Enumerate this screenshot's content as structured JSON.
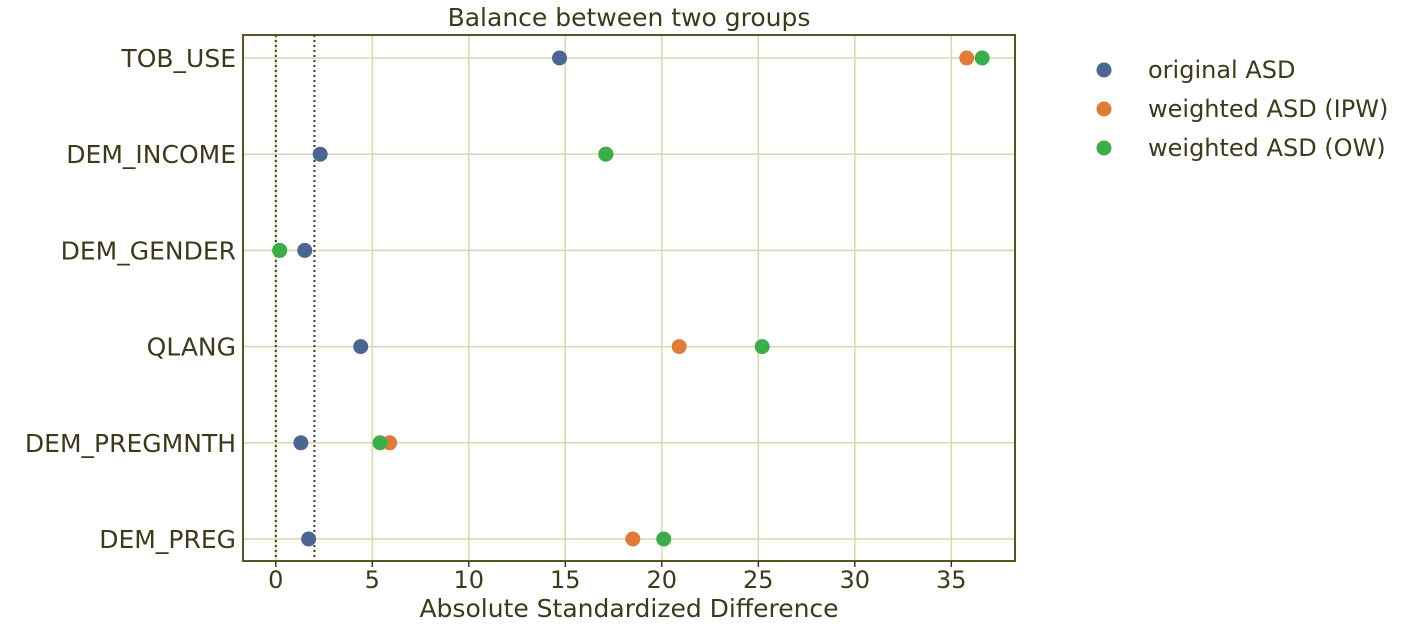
{
  "chart_data": {
    "type": "scatter",
    "title": "Balance between two groups",
    "xlabel": "Absolute Standardized Difference",
    "ylabel": "",
    "categories": [
      "TOB_USE",
      "DEM_INCOME",
      "DEM_GENDER",
      "QLANG",
      "DEM_PREGMNTH",
      "DEM_PREG"
    ],
    "xlim": [
      -1.7,
      38.3
    ],
    "xticks": [
      0,
      5,
      10,
      15,
      20,
      25,
      30,
      35
    ],
    "xtick_labels": [
      "0",
      "5",
      "10",
      "15",
      "20",
      "25",
      "30",
      "35"
    ],
    "reference_lines": [
      0,
      2
    ],
    "grid": true,
    "legend_position": "outside-right",
    "series": [
      {
        "name": "original ASD",
        "color": "#4c6591",
        "values": [
          14.7,
          2.3,
          1.5,
          4.4,
          1.3,
          1.7
        ]
      },
      {
        "name": "weighted ASD (IPW)",
        "color": "#e07b39",
        "values": [
          35.8,
          17.1,
          0.2,
          20.9,
          5.9,
          18.5
        ]
      },
      {
        "name": "weighted ASD (OW)",
        "color": "#3bad4b",
        "values": [
          36.6,
          17.1,
          0.2,
          25.2,
          5.4,
          20.1
        ]
      }
    ]
  }
}
